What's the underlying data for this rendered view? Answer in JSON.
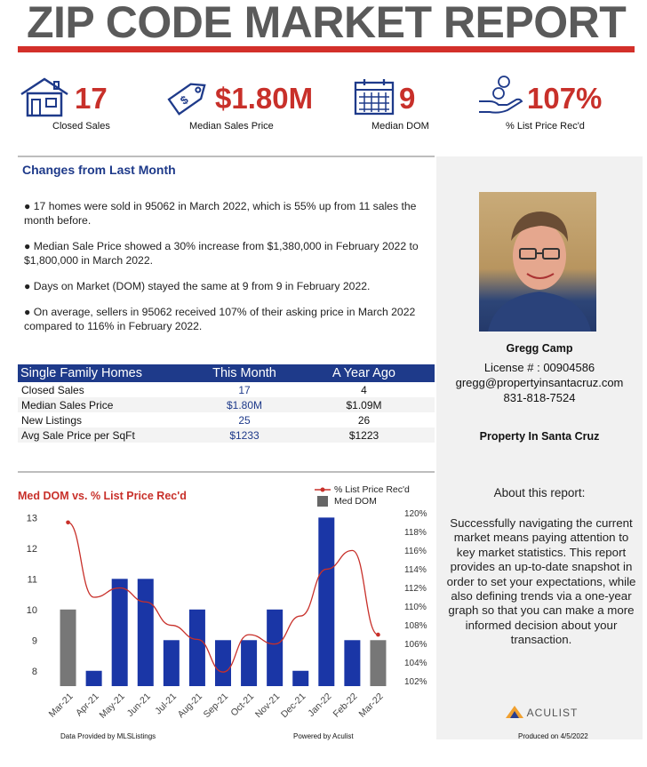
{
  "title": "ZIP CODE MARKET REPORT",
  "stats": [
    {
      "icon": "house-icon",
      "value": "17",
      "label": "Closed Sales"
    },
    {
      "icon": "price-tag-icon",
      "value": "$1.80M",
      "label": "Median Sales Price"
    },
    {
      "icon": "calendar-icon",
      "value": "9",
      "label": "Median DOM"
    },
    {
      "icon": "hand-coins-icon",
      "value": "107%",
      "label": "% List Price Rec'd"
    }
  ],
  "changes": {
    "title": "Changes from Last Month",
    "bullets": [
      "● 17 homes were sold in 95062 in March 2022, which is 55% up from 11 sales the month before.",
      "● Median Sale Price showed a 30% increase  from $1,380,000 in February 2022 to $1,800,000 in March 2022.",
      "● Days on Market (DOM) stayed the same at 9 from 9 in February 2022.",
      "● On average, sellers in 95062 received 107% of their asking price in March 2022 compared to 116% in February 2022."
    ]
  },
  "table": {
    "headers": [
      "Single Family Homes",
      "This Month",
      "A Year Ago"
    ],
    "rows": [
      [
        "Closed Sales",
        "17",
        "4"
      ],
      [
        "Median Sales Price",
        "$1.80M",
        "$1.09M"
      ],
      [
        "New Listings",
        "25",
        "26"
      ],
      [
        "Avg Sale Price per SqFt",
        "$1233",
        "$1223"
      ]
    ]
  },
  "agent": {
    "name": "Gregg Camp",
    "license": "License # : 00904586",
    "email": "gregg@propertyinsantacruz.com",
    "phone": "831-818-7524",
    "company": "Property In Santa Cruz"
  },
  "about": {
    "title": "About this report:",
    "text": "Successfully navigating the current market means paying attention to key market statistics. This report provides an up-to-date snapshot in order to set your expectations, while also defining trends via a one-year graph so that you can make a more informed decision about your transaction.",
    "logo": "ACULIST"
  },
  "chart_data": {
    "type": "bar",
    "title": "Med DOM  vs. % List Price Rec'd",
    "categories": [
      "Mar-21",
      "Apr-21",
      "May-21",
      "Jun-21",
      "Jul-21",
      "Aug-21",
      "Sep-21",
      "Oct-21",
      "Nov-21",
      "Dec-21",
      "Jan-22",
      "Feb-22",
      "Mar-22"
    ],
    "series": [
      {
        "name": "Med DOM",
        "type": "bar",
        "axis": "left",
        "values": [
          10,
          8,
          11,
          11,
          9,
          10,
          9,
          9,
          10,
          8,
          13,
          9,
          9
        ],
        "highlight": [
          true,
          false,
          false,
          false,
          false,
          false,
          false,
          false,
          false,
          false,
          false,
          false,
          true
        ]
      },
      {
        "name": "% List Price Rec'd",
        "type": "line",
        "axis": "right",
        "values": [
          119,
          111,
          112,
          110.5,
          108,
          106.5,
          103,
          107,
          106,
          109,
          114,
          116,
          107
        ]
      }
    ],
    "y_left": {
      "ticks": [
        8,
        9,
        10,
        11,
        12,
        13
      ],
      "range": [
        7.5,
        13.3
      ]
    },
    "y_right": {
      "ticks": [
        "102%",
        "104%",
        "106%",
        "108%",
        "110%",
        "112%",
        "114%",
        "116%",
        "118%",
        "120%"
      ],
      "range": [
        101.5,
        120.5
      ]
    },
    "colors": {
      "bar": "#1a36a6",
      "bar_highlight": "#777777",
      "line": "#c8302a"
    },
    "legend_position": "top-right"
  },
  "footer": {
    "left": "Data Provided by MLSListings",
    "center": "Powered by Aculist",
    "right": "Produced on 4/5/2022"
  }
}
